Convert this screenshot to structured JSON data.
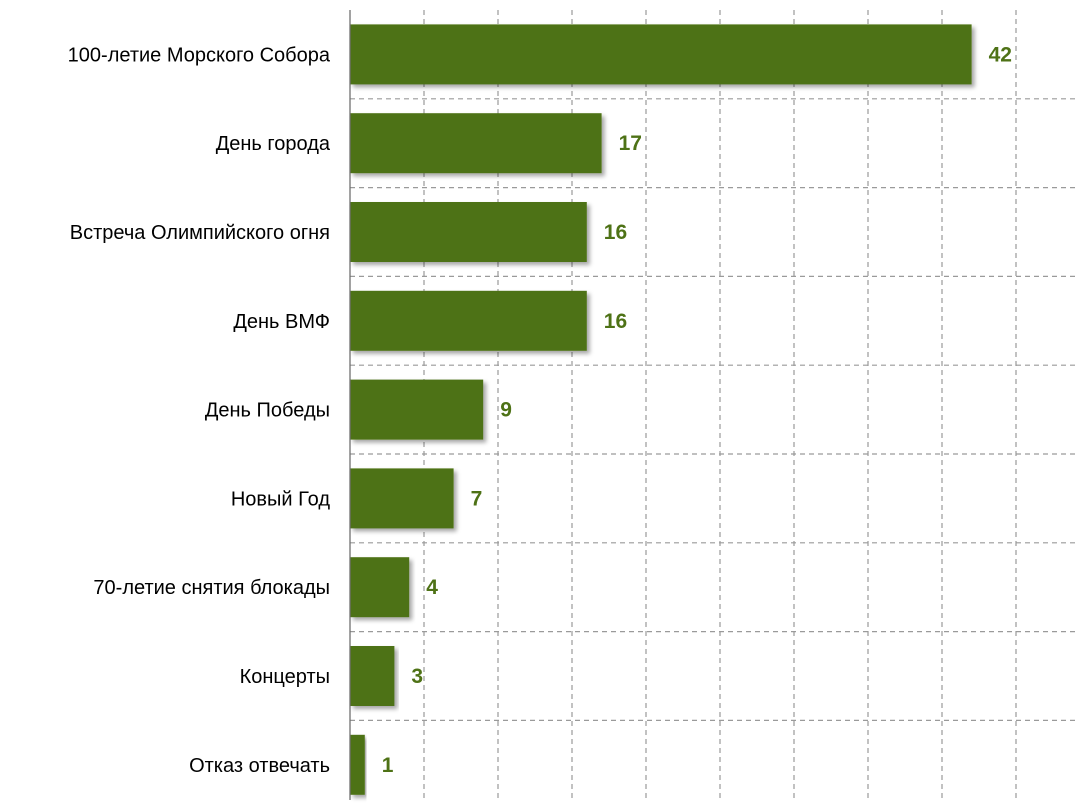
{
  "colors": {
    "bar": "#4e7216",
    "value_label": "#4e7216"
  },
  "chart_data": {
    "type": "bar",
    "orientation": "horizontal",
    "categories": [
      "100-летие Морского Собора",
      "День города",
      "Встреча Олимпийского огня",
      "День ВМФ",
      "День Победы",
      "Новый Год",
      "70-летие снятия блокады",
      "Концерты",
      "Отказ отвечать"
    ],
    "values": [
      42,
      17,
      16,
      16,
      9,
      7,
      4,
      3,
      1
    ],
    "value_labels": [
      "42",
      "17",
      "16",
      "16",
      "9",
      "7",
      "4",
      "3",
      "1"
    ],
    "title": "",
    "xlabel": "",
    "ylabel": "",
    "xlim": [
      0,
      50
    ],
    "grid": true,
    "legend": "none"
  }
}
